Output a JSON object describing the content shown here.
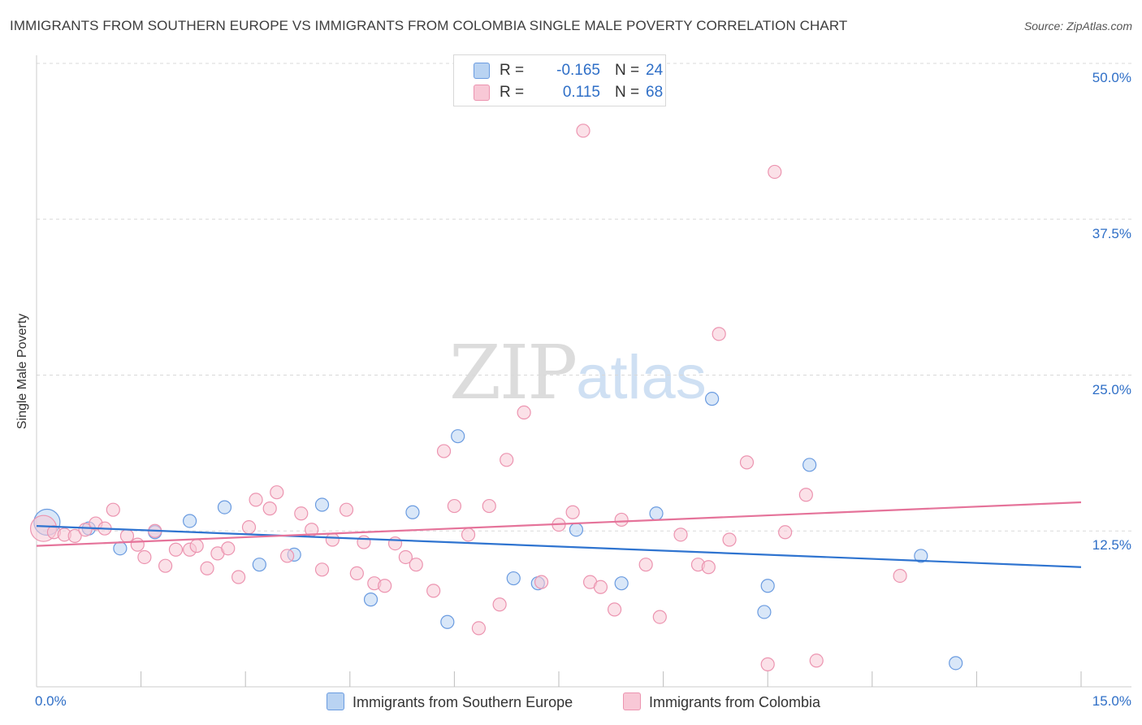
{
  "title": "IMMIGRANTS FROM SOUTHERN EUROPE VS IMMIGRANTS FROM COLOMBIA SINGLE MALE POVERTY CORRELATION CHART",
  "source": "Source: ZipAtlas.com",
  "watermark": {
    "zip": "ZIP",
    "atlas": "atlas"
  },
  "legend": {
    "rows": [
      {
        "r_label": "R =",
        "r_value": "-0.165",
        "n_label": "N =",
        "n_value": "24"
      },
      {
        "r_label": "R =",
        "r_value": "0.115",
        "n_label": "N =",
        "n_value": "68"
      }
    ]
  },
  "colors": {
    "blue_fill": "#b9d3f2",
    "blue_stroke": "#6a9be0",
    "blue_line": "#2f74d0",
    "pink_fill": "#f8c8d6",
    "pink_stroke": "#ec94b0",
    "pink_line": "#e5739a",
    "axis_text": "#2f6fc7",
    "grid": "#d9d9d9"
  },
  "chart_data": {
    "type": "scatter",
    "title": "IMMIGRANTS FROM SOUTHERN EUROPE VS IMMIGRANTS FROM COLOMBIA SINGLE MALE POVERTY CORRELATION CHART",
    "xlabel": "",
    "ylabel": "Single Male Poverty",
    "xlim": [
      0,
      15
    ],
    "ylim": [
      0,
      50
    ],
    "x_tick_labels": [
      "0.0%",
      "15.0%"
    ],
    "y_ticks": [
      12.5,
      25.0,
      37.5,
      50.0
    ],
    "y_tick_labels": [
      "12.5%",
      "25.0%",
      "37.5%",
      "50.0%"
    ],
    "grid": true,
    "legend_position": "bottom",
    "series": [
      {
        "name": "Immigrants from Southern Europe",
        "color": "blue",
        "R": -0.165,
        "N": 24,
        "trend": [
          [
            0,
            12.9
          ],
          [
            15,
            9.6
          ]
        ],
        "points": [
          [
            0.15,
            13.2,
            "large"
          ],
          [
            0.75,
            12.7
          ],
          [
            1.2,
            11.1
          ],
          [
            1.7,
            12.4
          ],
          [
            2.2,
            13.3
          ],
          [
            2.7,
            14.4
          ],
          [
            3.2,
            9.8
          ],
          [
            3.7,
            10.6
          ],
          [
            4.1,
            14.6
          ],
          [
            4.8,
            7.0
          ],
          [
            5.4,
            14.0
          ],
          [
            5.9,
            5.2
          ],
          [
            6.05,
            20.1
          ],
          [
            6.85,
            8.7
          ],
          [
            7.2,
            8.3
          ],
          [
            7.75,
            12.6
          ],
          [
            8.4,
            8.3
          ],
          [
            8.9,
            13.9
          ],
          [
            9.7,
            23.1
          ],
          [
            10.45,
            6.0
          ],
          [
            10.5,
            8.1
          ],
          [
            11.1,
            17.8
          ],
          [
            12.7,
            10.5
          ],
          [
            13.2,
            1.9
          ]
        ]
      },
      {
        "name": "Immigrants from Colombia",
        "color": "pink",
        "R": 0.115,
        "N": 68,
        "trend": [
          [
            0,
            11.3
          ],
          [
            15,
            14.8
          ]
        ],
        "points": [
          [
            0.1,
            12.7,
            "large"
          ],
          [
            0.25,
            12.4
          ],
          [
            0.4,
            12.2
          ],
          [
            0.55,
            12.1
          ],
          [
            0.7,
            12.6
          ],
          [
            0.85,
            13.1
          ],
          [
            0.98,
            12.7
          ],
          [
            1.1,
            14.2
          ],
          [
            1.3,
            12.1
          ],
          [
            1.45,
            11.4
          ],
          [
            1.55,
            10.4
          ],
          [
            1.7,
            12.5
          ],
          [
            1.85,
            9.7
          ],
          [
            2.0,
            11.0
          ],
          [
            2.2,
            11.0
          ],
          [
            2.3,
            11.3
          ],
          [
            2.45,
            9.5
          ],
          [
            2.6,
            10.7
          ],
          [
            2.75,
            11.1
          ],
          [
            2.9,
            8.8
          ],
          [
            3.05,
            12.8
          ],
          [
            3.15,
            15.0
          ],
          [
            3.35,
            14.3
          ],
          [
            3.45,
            15.6
          ],
          [
            3.6,
            10.5
          ],
          [
            3.8,
            13.9
          ],
          [
            3.95,
            12.6
          ],
          [
            4.1,
            9.4
          ],
          [
            4.25,
            11.8
          ],
          [
            4.45,
            14.2
          ],
          [
            4.6,
            9.1
          ],
          [
            4.7,
            11.6
          ],
          [
            4.85,
            8.3
          ],
          [
            5.0,
            8.1
          ],
          [
            5.15,
            11.5
          ],
          [
            5.3,
            10.4
          ],
          [
            5.45,
            9.8
          ],
          [
            5.7,
            7.7
          ],
          [
            5.85,
            18.9
          ],
          [
            6.0,
            14.5
          ],
          [
            6.2,
            12.2
          ],
          [
            6.35,
            4.7
          ],
          [
            6.5,
            14.5
          ],
          [
            6.65,
            6.6
          ],
          [
            6.75,
            18.2
          ],
          [
            7.0,
            22.0
          ],
          [
            7.25,
            8.4
          ],
          [
            7.5,
            13.0
          ],
          [
            7.7,
            14.0
          ],
          [
            7.85,
            44.6
          ],
          [
            7.95,
            8.4
          ],
          [
            8.1,
            8.0
          ],
          [
            8.3,
            6.2
          ],
          [
            8.4,
            13.4
          ],
          [
            8.75,
            9.8
          ],
          [
            8.95,
            5.6
          ],
          [
            9.25,
            12.2
          ],
          [
            9.5,
            9.8
          ],
          [
            9.65,
            9.6
          ],
          [
            9.8,
            28.3
          ],
          [
            9.95,
            11.8
          ],
          [
            10.2,
            18.0
          ],
          [
            10.5,
            1.8
          ],
          [
            10.6,
            41.3
          ],
          [
            10.75,
            12.4
          ],
          [
            11.05,
            15.4
          ],
          [
            11.2,
            2.1
          ],
          [
            12.4,
            8.9
          ]
        ]
      }
    ]
  },
  "bottom_legend": {
    "items": [
      {
        "label": "Immigrants from Southern Europe"
      },
      {
        "label": "Immigrants from Colombia"
      }
    ]
  }
}
